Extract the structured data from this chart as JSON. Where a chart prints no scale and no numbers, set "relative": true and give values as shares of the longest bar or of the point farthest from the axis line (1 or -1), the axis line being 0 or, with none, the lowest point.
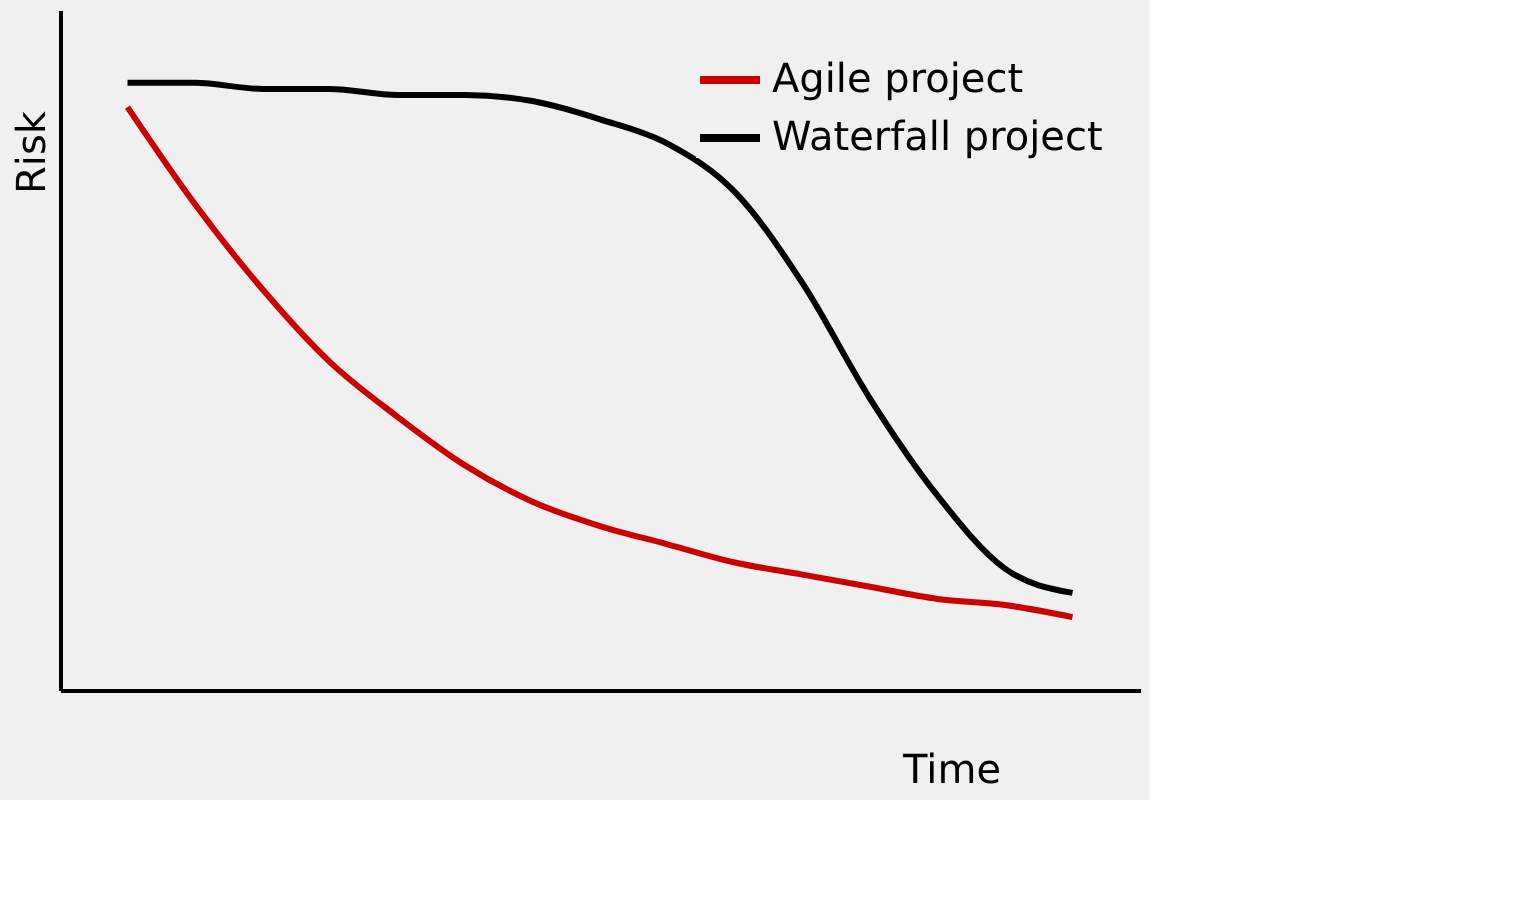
{
  "chart_data": {
    "type": "line",
    "relative": true,
    "xlabel": "Time",
    "ylabel": "Risk",
    "legend": "top right",
    "grid": false,
    "tick_labels": false,
    "categories": [
      null,
      null,
      null,
      null,
      null,
      null,
      null,
      null,
      null,
      null,
      null,
      null,
      null,
      null,
      null
    ],
    "series": [
      {
        "name": "Agile project",
        "color": "#cc0000",
        "values": [
          0.96,
          0.8,
          0.66,
          0.54,
          0.45,
          0.37,
          0.31,
          0.27,
          0.24,
          0.21,
          0.19,
          0.17,
          0.15,
          0.14,
          0.12
        ]
      },
      {
        "name": "Waterfall project",
        "color": "#000000",
        "values": [
          1.0,
          1.0,
          0.99,
          0.99,
          0.98,
          0.98,
          0.97,
          0.94,
          0.9,
          0.82,
          0.67,
          0.48,
          0.32,
          0.2,
          0.16
        ]
      }
    ]
  }
}
